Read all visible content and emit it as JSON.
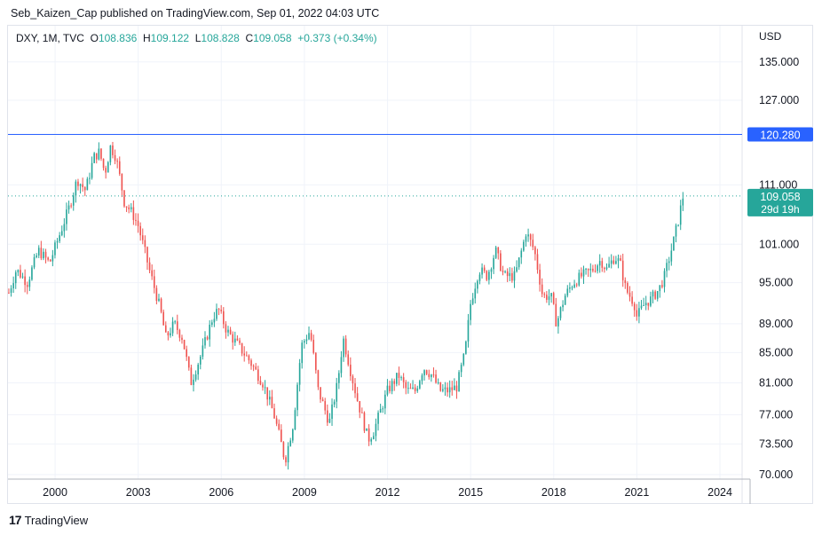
{
  "header": {
    "publish_text": "Seb_Kaizen_Cap published on TradingView.com, Sep 01, 2022 04:03 UTC"
  },
  "legend": {
    "symbol": "DXY, 1M, TVC",
    "o_label": "O",
    "o_value": "108.836",
    "h_label": "H",
    "h_value": "109.122",
    "l_label": "L",
    "l_value": "108.828",
    "c_label": "C",
    "c_value": "109.058",
    "change": "+0.373 (+0.34%)"
  },
  "footer": {
    "logo_text": "17",
    "brand": "TradingView"
  },
  "colors": {
    "up": "#26a69a",
    "down": "#ef5350",
    "hline": "#2962ff",
    "grid": "#f0f3fa",
    "axis_text": "#131722"
  },
  "chart_data": {
    "type": "candlestick",
    "title": "",
    "currency_label": "USD",
    "y_scale": "log",
    "ylim": [
      69.5,
      143
    ],
    "xlim": [
      1998.3,
      2024.8
    ],
    "y_ticks": [
      "135.000",
      "127.000",
      "111.000",
      "101.000",
      "95.000",
      "89.000",
      "85.000",
      "81.000",
      "77.000",
      "73.500",
      "70.000"
    ],
    "y_tick_values": [
      135,
      127,
      111,
      101,
      95,
      89,
      85,
      81,
      77,
      73.5,
      70
    ],
    "x_ticks": [
      "2000",
      "2003",
      "2006",
      "2009",
      "2012",
      "2015",
      "2018",
      "2021",
      "2024"
    ],
    "x_tick_values": [
      2000,
      2003,
      2006,
      2009,
      2012,
      2015,
      2018,
      2021,
      2024
    ],
    "horizontal_line": {
      "value": 120.28,
      "label": "120.280"
    },
    "last_price": {
      "value": 109.058,
      "label": "109.058",
      "countdown": "29d 19h"
    },
    "price_path": [
      [
        1998.33,
        93.5
      ],
      [
        1998.6,
        97
      ],
      [
        1999.0,
        95
      ],
      [
        1999.4,
        100
      ],
      [
        1999.8,
        98
      ],
      [
        2000.2,
        103
      ],
      [
        2000.5,
        107
      ],
      [
        2000.8,
        112
      ],
      [
        2001.1,
        110
      ],
      [
        2001.4,
        116
      ],
      [
        2001.6,
        117
      ],
      [
        2001.8,
        113
      ],
      [
        2002.0,
        118
      ],
      [
        2002.2,
        116
      ],
      [
        2002.5,
        108
      ],
      [
        2002.8,
        106
      ],
      [
        2003.0,
        104
      ],
      [
        2003.4,
        97
      ],
      [
        2003.8,
        91
      ],
      [
        2004.0,
        87
      ],
      [
        2004.3,
        89
      ],
      [
        2004.6,
        87
      ],
      [
        2004.9,
        81
      ],
      [
        2005.3,
        85
      ],
      [
        2005.7,
        90
      ],
      [
        2005.9,
        91
      ],
      [
        2006.2,
        88
      ],
      [
        2006.6,
        86
      ],
      [
        2007.0,
        84
      ],
      [
        2007.5,
        81
      ],
      [
        2007.9,
        77
      ],
      [
        2008.2,
        73
      ],
      [
        2008.3,
        71.5
      ],
      [
        2008.6,
        76
      ],
      [
        2008.9,
        86
      ],
      [
        2009.2,
        88
      ],
      [
        2009.5,
        80
      ],
      [
        2009.9,
        76
      ],
      [
        2010.2,
        81
      ],
      [
        2010.4,
        87
      ],
      [
        2010.7,
        82
      ],
      [
        2010.9,
        79
      ],
      [
        2011.3,
        74
      ],
      [
        2011.5,
        75
      ],
      [
        2011.8,
        78
      ],
      [
        2012.0,
        80
      ],
      [
        2012.4,
        82
      ],
      [
        2012.7,
        80
      ],
      [
        2013.0,
        80
      ],
      [
        2013.3,
        83
      ],
      [
        2013.6,
        82
      ],
      [
        2013.9,
        80
      ],
      [
        2014.2,
        80
      ],
      [
        2014.5,
        80.5
      ],
      [
        2014.8,
        85
      ],
      [
        2015.0,
        92
      ],
      [
        2015.3,
        97
      ],
      [
        2015.6,
        96
      ],
      [
        2015.9,
        100
      ],
      [
        2016.2,
        96
      ],
      [
        2016.6,
        96
      ],
      [
        2016.9,
        101
      ],
      [
        2017.0,
        103
      ],
      [
        2017.3,
        100
      ],
      [
        2017.6,
        93
      ],
      [
        2017.9,
        93
      ],
      [
        2018.1,
        89
      ],
      [
        2018.4,
        93
      ],
      [
        2018.7,
        95
      ],
      [
        2019.0,
        96
      ],
      [
        2019.4,
        97
      ],
      [
        2019.7,
        98.5
      ],
      [
        2019.9,
        97
      ],
      [
        2020.2,
        99
      ],
      [
        2020.4,
        98
      ],
      [
        2020.6,
        94
      ],
      [
        2020.9,
        92
      ],
      [
        2021.0,
        90
      ],
      [
        2021.3,
        92
      ],
      [
        2021.5,
        92.5
      ],
      [
        2021.8,
        94
      ],
      [
        2022.0,
        96
      ],
      [
        2022.3,
        101
      ],
      [
        2022.5,
        105
      ],
      [
        2022.67,
        109.06
      ]
    ]
  }
}
